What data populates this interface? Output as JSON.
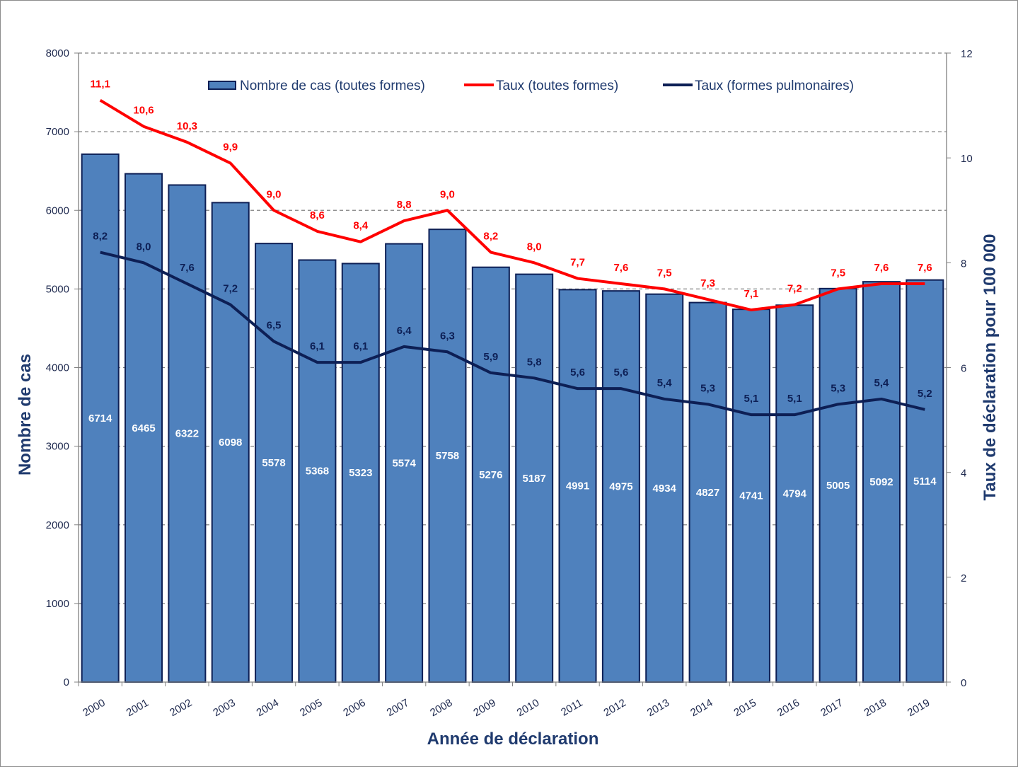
{
  "chart_data": {
    "type": "bar+line",
    "categories": [
      "2000",
      "2001",
      "2002",
      "2003",
      "2004",
      "2005",
      "2006",
      "2007",
      "2008",
      "2009",
      "2010",
      "2011",
      "2012",
      "2013",
      "2014",
      "2015",
      "2016",
      "2017",
      "2018",
      "2019"
    ],
    "series": [
      {
        "name": "Nombre de cas (toutes formes)",
        "type": "bar",
        "axis": "left",
        "color": "#4f81bd",
        "values": [
          6714,
          6465,
          6322,
          6098,
          5578,
          5368,
          5323,
          5574,
          5758,
          5276,
          5187,
          4991,
          4975,
          4934,
          4827,
          4741,
          4794,
          5005,
          5092,
          5114
        ]
      },
      {
        "name": "Taux (toutes formes)",
        "type": "line",
        "axis": "right",
        "color": "#ff0000",
        "values": [
          11.1,
          10.6,
          10.3,
          9.9,
          9.0,
          8.6,
          8.4,
          8.8,
          9.0,
          8.2,
          8.0,
          7.7,
          7.6,
          7.5,
          7.3,
          7.1,
          7.2,
          7.5,
          7.6,
          7.6
        ]
      },
      {
        "name": "Taux (formes pulmonaires)",
        "type": "line",
        "axis": "right",
        "color": "#0d1f55",
        "values": [
          8.2,
          8.0,
          7.6,
          7.2,
          6.5,
          6.1,
          6.1,
          6.4,
          6.3,
          5.9,
          5.8,
          5.6,
          5.6,
          5.4,
          5.3,
          5.1,
          5.1,
          5.3,
          5.4,
          5.2
        ]
      }
    ],
    "xlabel": "Année de déclaration",
    "ylabel": "Nombre de cas",
    "y2label": "Taux de déclaration pour 100 000",
    "ylim": [
      0,
      8000
    ],
    "yticks": [
      "0",
      "1000",
      "2000",
      "3000",
      "4000",
      "5000",
      "6000",
      "7000",
      "8000"
    ],
    "y2lim": [
      0,
      12
    ],
    "y2ticks": [
      "0",
      "2",
      "4",
      "6",
      "8",
      "10",
      "12"
    ],
    "grid": "horizontal dashed",
    "legend": "top",
    "decimal_separator": ","
  }
}
